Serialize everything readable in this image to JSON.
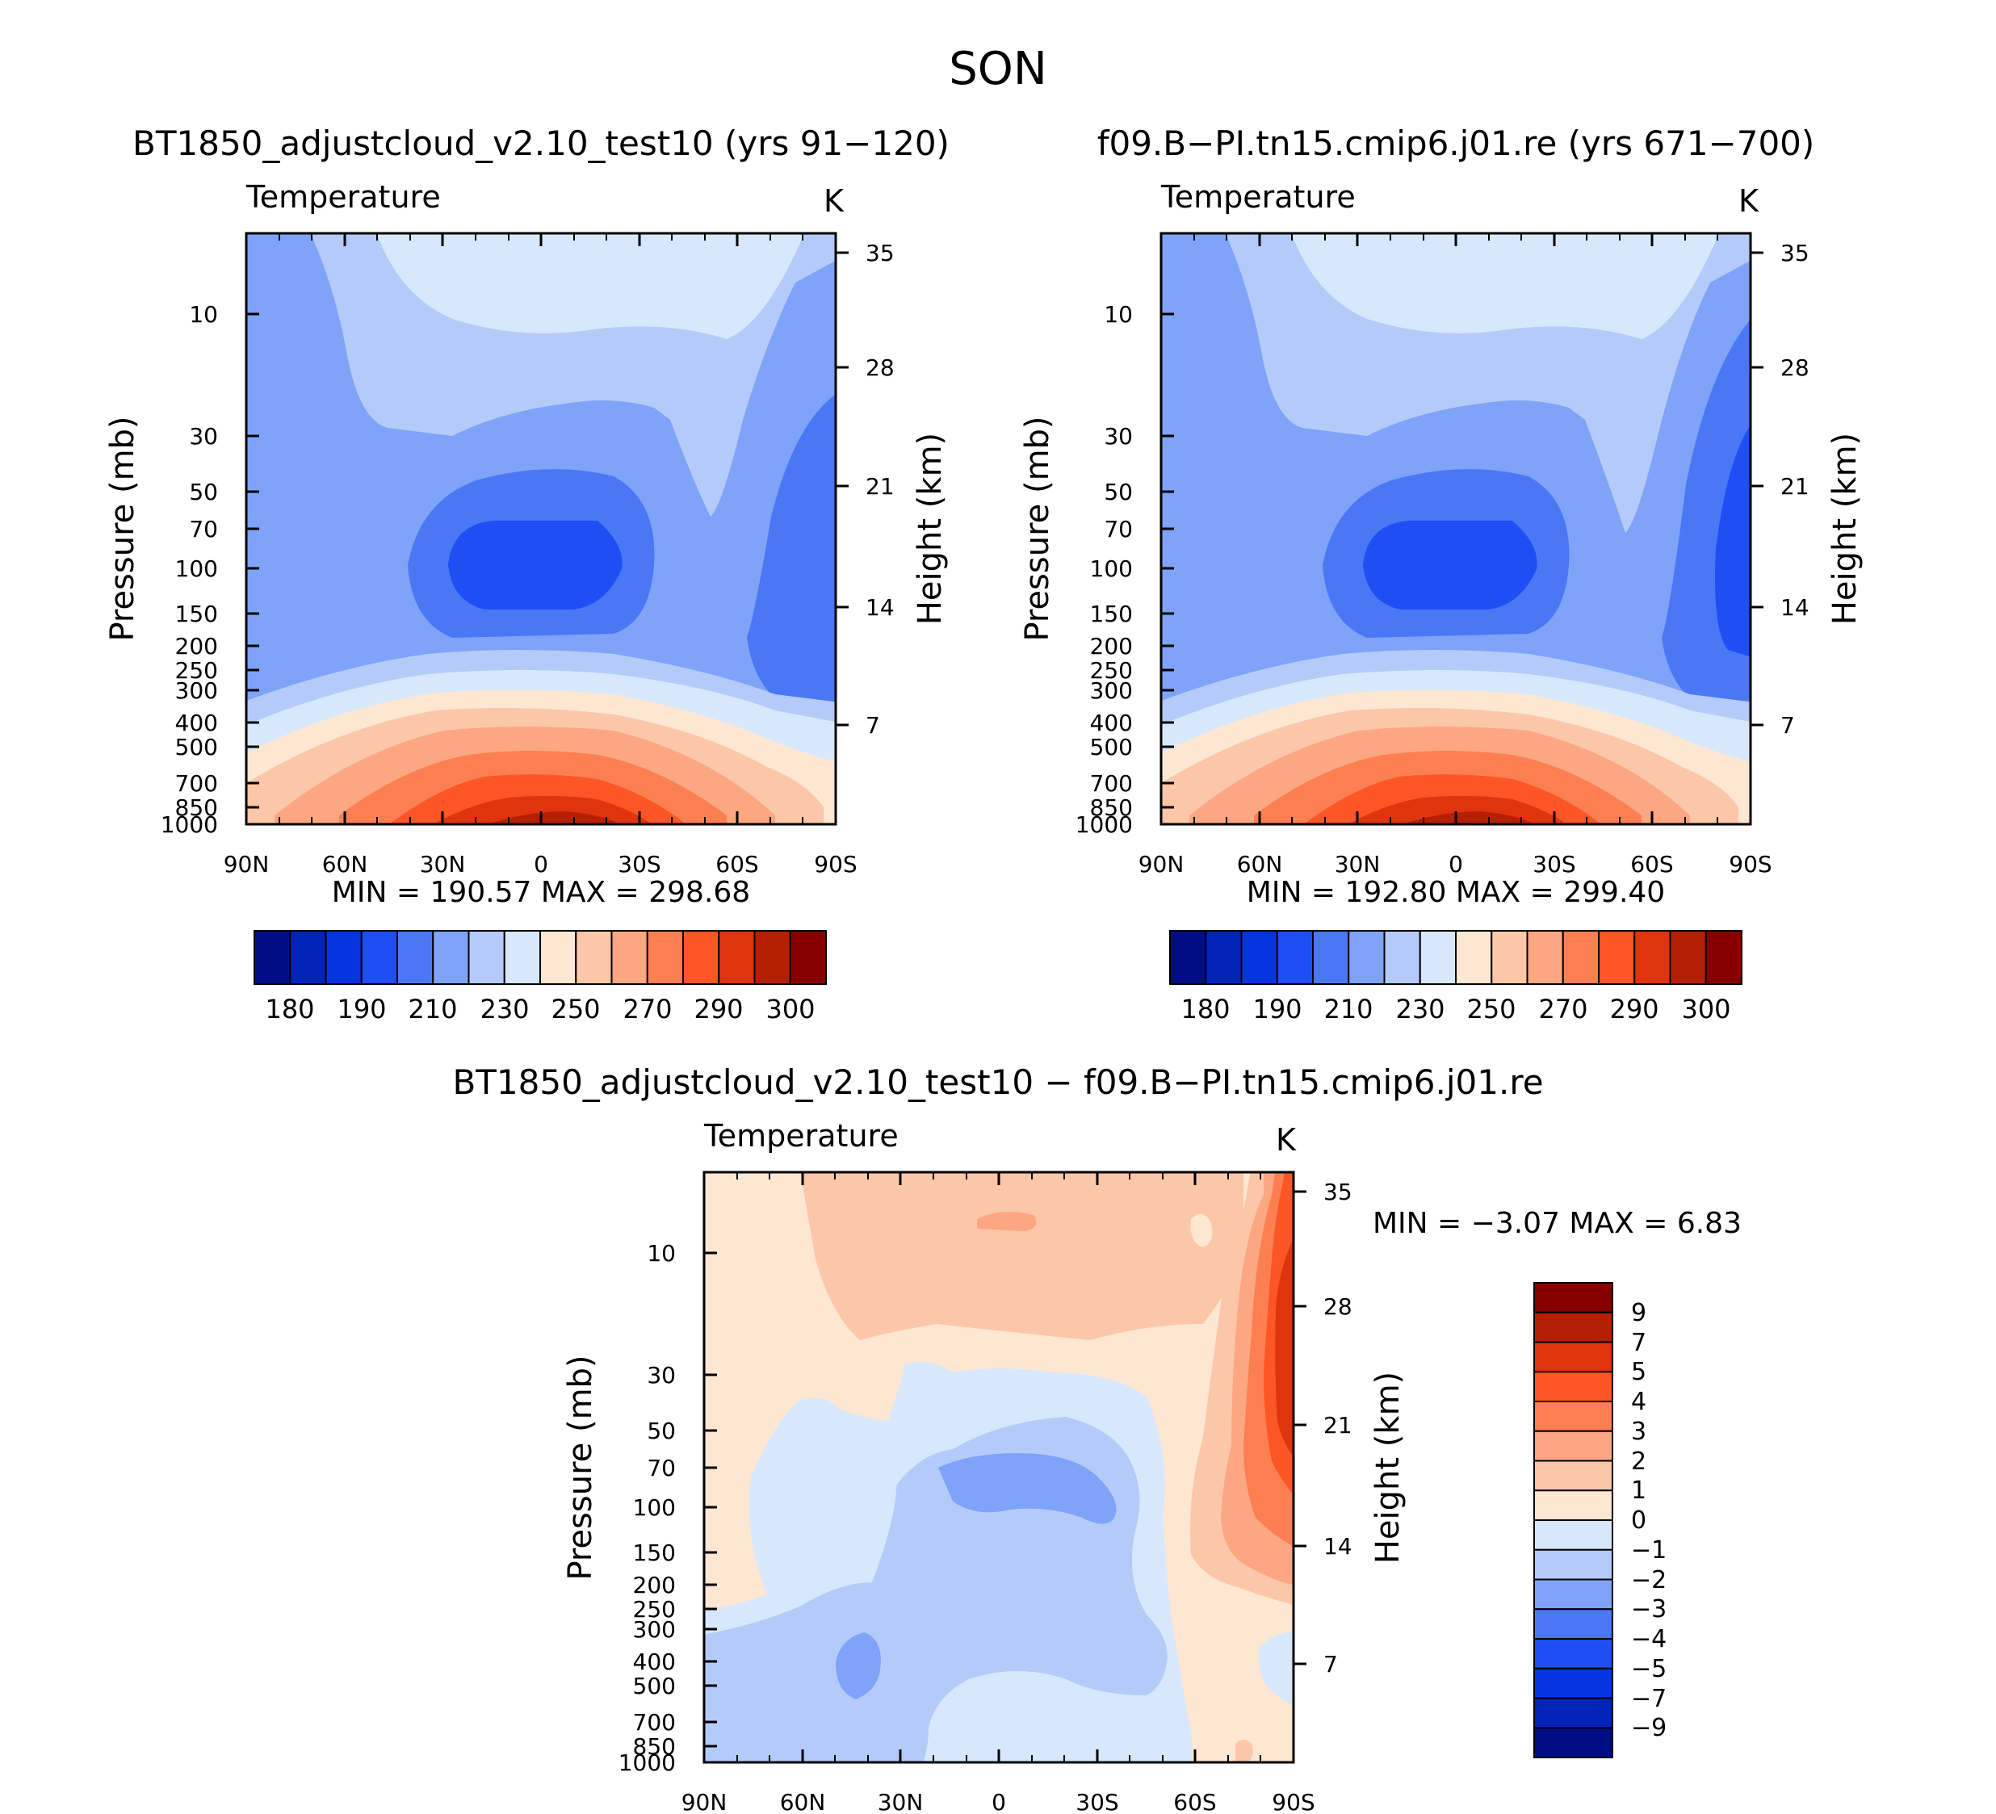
{
  "figure": {
    "season": "SON",
    "diff_title": "BT1850_adjustcloud_v2.10_test10 − f09.B−PI.tn15.cmip6.j01.re"
  },
  "chart_data": [
    {
      "type": "heatmap",
      "title": "BT1850_adjustcloud_v2.10_test10 (yrs 91−120)",
      "field": "Temperature",
      "units": "K",
      "xlabel": "",
      "ylabel": "Pressure (mb)",
      "ylabel_right": "Height (km)",
      "x_ticks": [
        "90N",
        "60N",
        "30N",
        "0",
        "30S",
        "60S",
        "90S"
      ],
      "y_ticks": [
        "10",
        "30",
        "50",
        "70",
        "100",
        "150",
        "200",
        "250",
        "300",
        "400",
        "500",
        "700",
        "850",
        "1000"
      ],
      "height_ticks": [
        "35",
        "28",
        "21",
        "14",
        "7"
      ],
      "min": "190.57",
      "max": "298.68",
      "min_text": "MIN = 190.57 MAX = 298.68",
      "colorbar_labels": [
        "180",
        "190",
        "210",
        "230",
        "250",
        "270",
        "290",
        "300"
      ]
    },
    {
      "type": "heatmap",
      "title": "f09.B−PI.tn15.cmip6.j01.re (yrs 671−700)",
      "field": "Temperature",
      "units": "K",
      "xlabel": "",
      "ylabel": "Pressure (mb)",
      "ylabel_right": "Height (km)",
      "x_ticks": [
        "90N",
        "60N",
        "30N",
        "0",
        "30S",
        "60S",
        "90S"
      ],
      "y_ticks": [
        "10",
        "30",
        "50",
        "70",
        "100",
        "150",
        "200",
        "250",
        "300",
        "400",
        "500",
        "700",
        "850",
        "1000"
      ],
      "height_ticks": [
        "35",
        "28",
        "21",
        "14",
        "7"
      ],
      "min": "192.80",
      "max": "299.40",
      "min_text": "MIN = 192.80 MAX = 299.40",
      "colorbar_labels": [
        "180",
        "190",
        "210",
        "230",
        "250",
        "270",
        "290",
        "300"
      ]
    },
    {
      "type": "heatmap",
      "title": "BT1850_adjustcloud_v2.10_test10 − f09.B−PI.tn15.cmip6.j01.re",
      "field": "Temperature",
      "units": "K",
      "xlabel": "",
      "ylabel": "Pressure (mb)",
      "ylabel_right": "Height (km)",
      "x_ticks": [
        "90N",
        "60N",
        "30N",
        "0",
        "30S",
        "60S",
        "90S"
      ],
      "y_ticks": [
        "10",
        "30",
        "50",
        "70",
        "100",
        "150",
        "200",
        "250",
        "300",
        "400",
        "500",
        "700",
        "850",
        "1000"
      ],
      "height_ticks": [
        "35",
        "28",
        "21",
        "14",
        "7"
      ],
      "min": "−3.07",
      "max": "6.83",
      "min_text": "MIN = −3.07 MAX = 6.83",
      "colorbar_labels": [
        "9",
        "7",
        "5",
        "4",
        "3",
        "2",
        "1",
        "0",
        "−1",
        "−2",
        "−3",
        "−4",
        "−5",
        "−7",
        "−9"
      ]
    }
  ],
  "colors": {
    "abs_scale": [
      "#000e86",
      "#0024b8",
      "#0535e1",
      "#1e4ff5",
      "#4a78f5",
      "#7ea3f8",
      "#b4cbfa",
      "#d8e8fc",
      "#fde6d2",
      "#fcc6a8",
      "#fca682",
      "#fc7f52",
      "#fc5526",
      "#e0340e",
      "#b52005",
      "#860000"
    ],
    "diff_scale": [
      "#860000",
      "#b52005",
      "#e0340e",
      "#fc5526",
      "#fc7f52",
      "#fca682",
      "#fcc6a8",
      "#fde6d2",
      "#d8e8fc",
      "#b4cbfa",
      "#7ea3f8",
      "#4a78f5",
      "#1e4ff5",
      "#0535e1",
      "#0024b8",
      "#000e86"
    ]
  }
}
